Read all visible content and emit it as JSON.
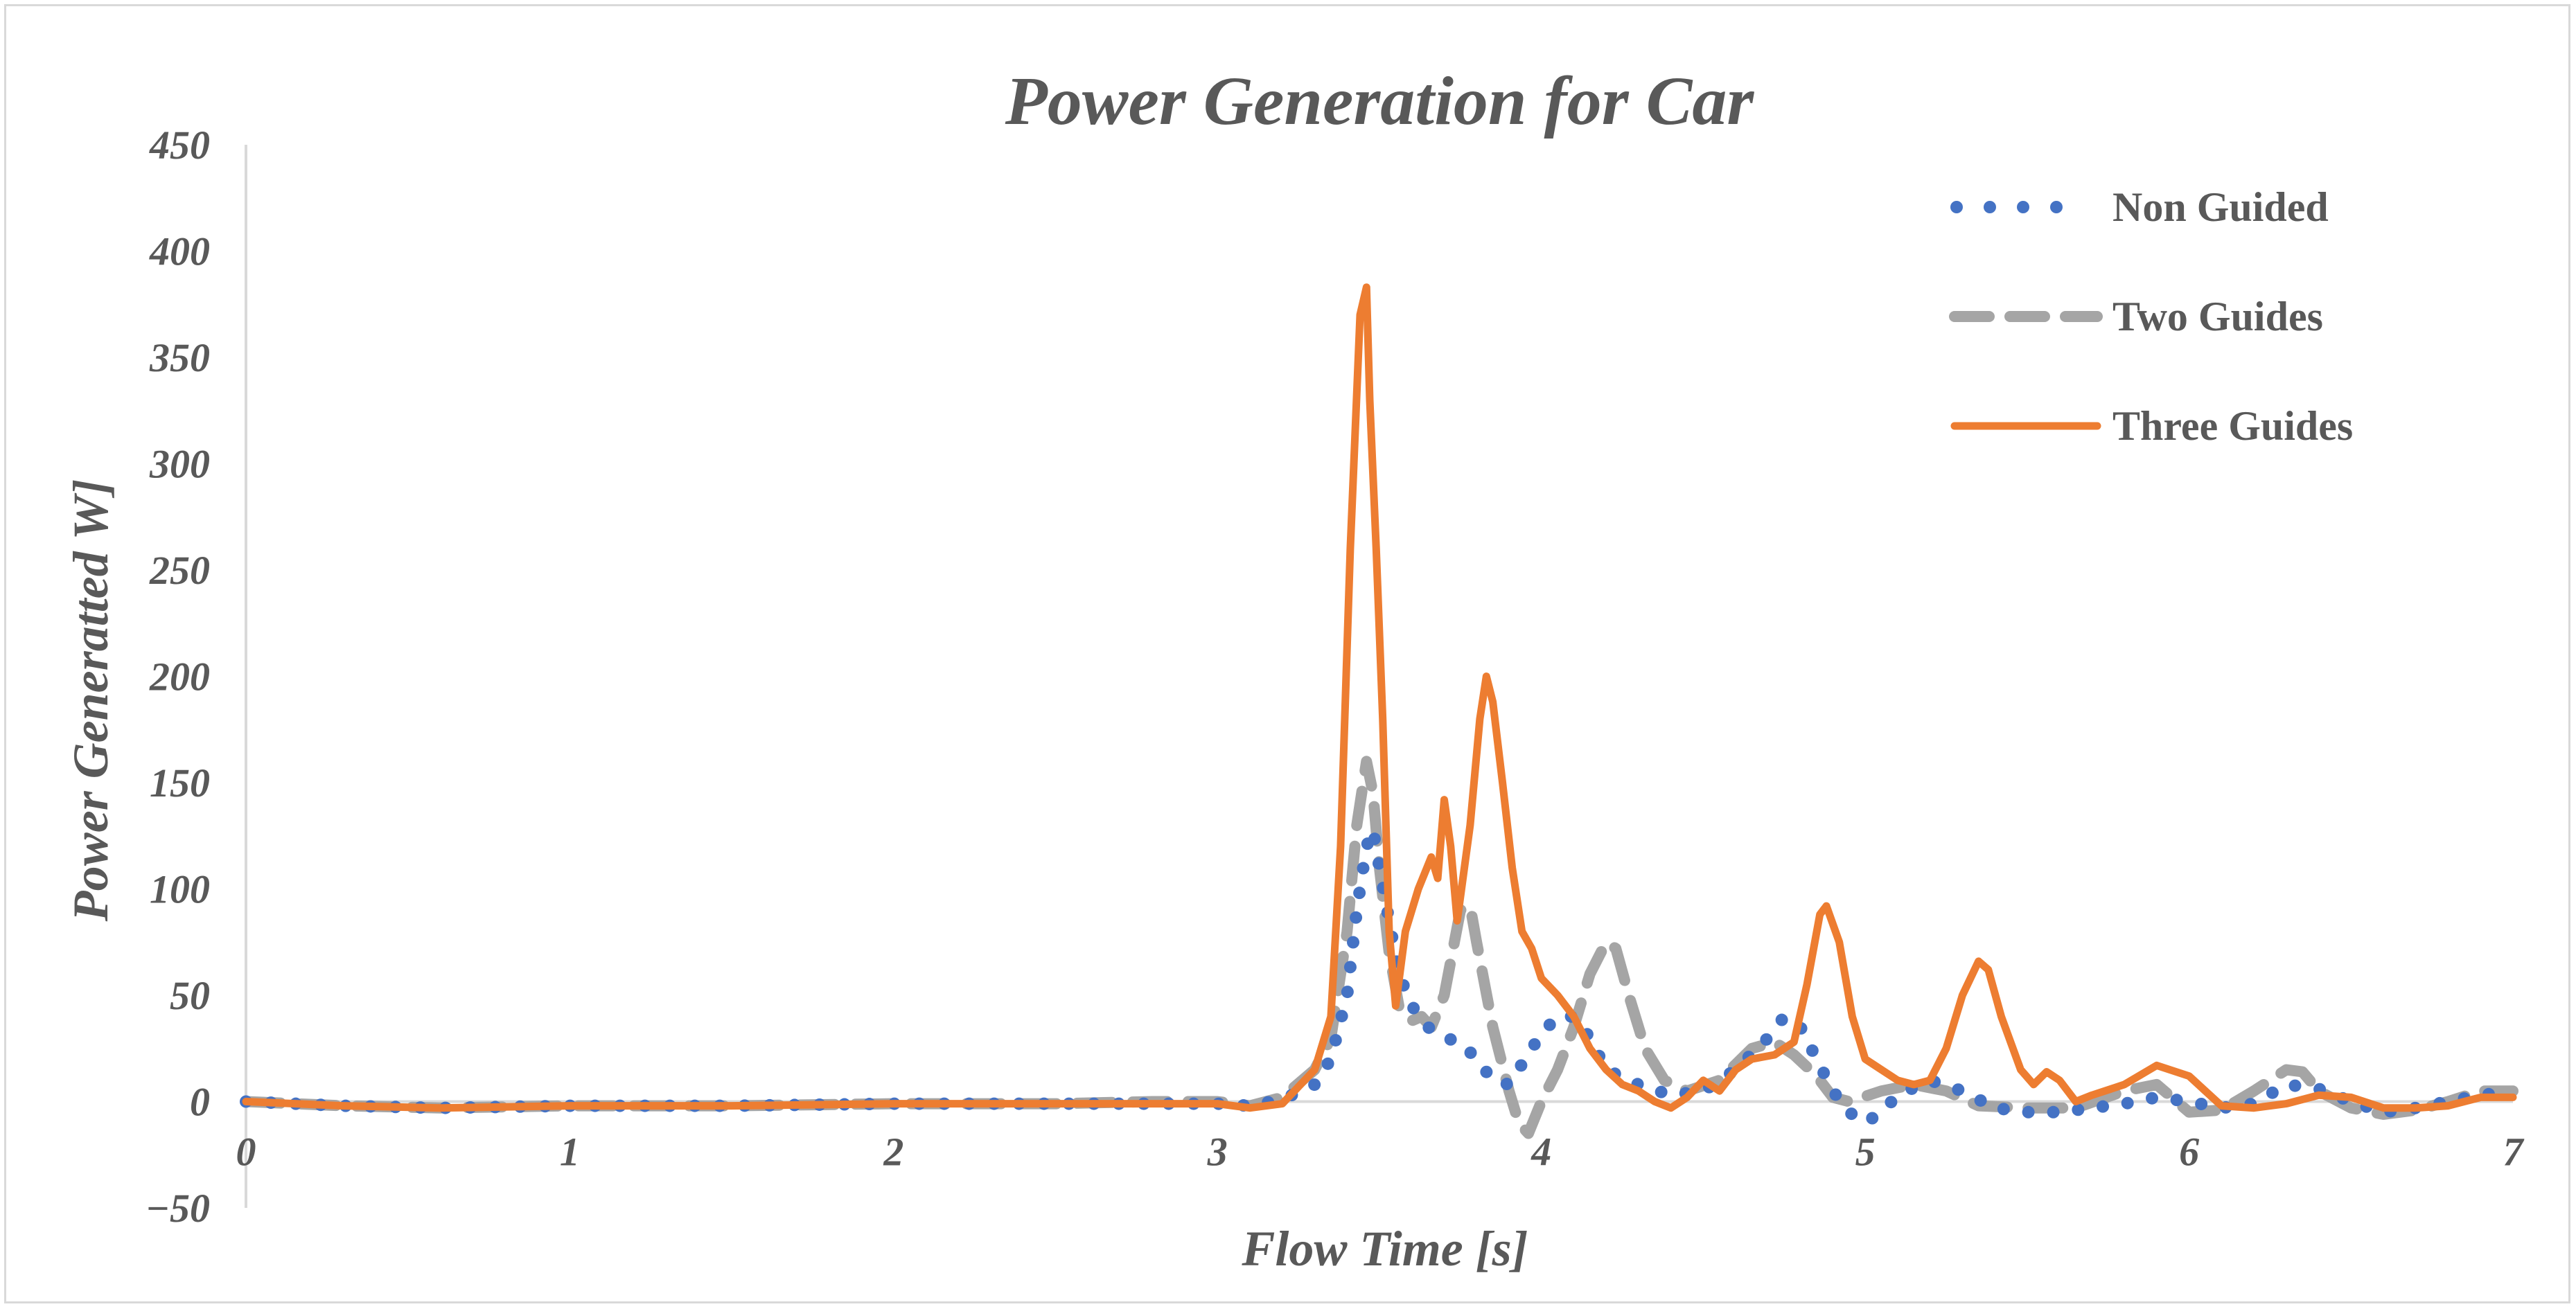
{
  "chart_data": {
    "type": "line",
    "title": "Power Generation for Car",
    "xlabel": "Flow Time [s]",
    "ylabel": "Power Generatted W]",
    "xlim": [
      0,
      7
    ],
    "ylim": [
      -50,
      450
    ],
    "x_ticks": [
      "0",
      "1",
      "2",
      "3",
      "4",
      "5",
      "6",
      "7"
    ],
    "y_ticks": [
      "−50",
      "0",
      "50",
      "100",
      "150",
      "200",
      "250",
      "300",
      "350",
      "400",
      "450"
    ],
    "x_tick_values": [
      0,
      1,
      2,
      3,
      4,
      5,
      6,
      7
    ],
    "y_tick_values": [
      -50,
      0,
      50,
      100,
      150,
      200,
      250,
      300,
      350,
      400,
      450
    ],
    "grid": false,
    "legend_position": "top-right",
    "series": [
      {
        "name": "Non Guided",
        "color": "#4472c4",
        "style": "dotted",
        "points": [
          [
            0,
            0
          ],
          [
            0.3,
            -2
          ],
          [
            0.6,
            -3
          ],
          [
            1.0,
            -2
          ],
          [
            1.5,
            -2
          ],
          [
            2.0,
            -1
          ],
          [
            2.5,
            -1
          ],
          [
            3.0,
            -1
          ],
          [
            3.1,
            -2
          ],
          [
            3.2,
            1
          ],
          [
            3.3,
            8
          ],
          [
            3.35,
            20
          ],
          [
            3.4,
            50
          ],
          [
            3.43,
            90
          ],
          [
            3.46,
            120
          ],
          [
            3.48,
            128
          ],
          [
            3.5,
            110
          ],
          [
            3.53,
            85
          ],
          [
            3.56,
            60
          ],
          [
            3.6,
            45
          ],
          [
            3.65,
            35
          ],
          [
            3.7,
            30
          ],
          [
            3.75,
            28
          ],
          [
            3.8,
            20
          ],
          [
            3.85,
            10
          ],
          [
            3.9,
            8
          ],
          [
            3.95,
            20
          ],
          [
            4.0,
            32
          ],
          [
            4.05,
            40
          ],
          [
            4.1,
            40
          ],
          [
            4.15,
            30
          ],
          [
            4.2,
            15
          ],
          [
            4.3,
            8
          ],
          [
            4.4,
            3
          ],
          [
            4.5,
            5
          ],
          [
            4.6,
            15
          ],
          [
            4.7,
            30
          ],
          [
            4.75,
            40
          ],
          [
            4.8,
            35
          ],
          [
            4.85,
            20
          ],
          [
            4.9,
            5
          ],
          [
            4.95,
            -5
          ],
          [
            5.0,
            -10
          ],
          [
            5.05,
            -5
          ],
          [
            5.1,
            3
          ],
          [
            5.2,
            10
          ],
          [
            5.3,
            5
          ],
          [
            5.4,
            -3
          ],
          [
            5.5,
            -5
          ],
          [
            5.6,
            -5
          ],
          [
            5.7,
            -3
          ],
          [
            5.8,
            -1
          ],
          [
            5.9,
            2
          ],
          [
            6.0,
            0
          ],
          [
            6.1,
            -3
          ],
          [
            6.2,
            -1
          ],
          [
            6.3,
            8
          ],
          [
            6.4,
            6
          ],
          [
            6.5,
            0
          ],
          [
            6.6,
            -5
          ],
          [
            6.7,
            -3
          ],
          [
            6.8,
            0
          ],
          [
            6.9,
            3
          ],
          [
            7.0,
            5
          ]
        ]
      },
      {
        "name": "Two Guides",
        "color": "#a5a5a5",
        "style": "dashed",
        "points": [
          [
            0,
            0
          ],
          [
            0.3,
            -2
          ],
          [
            0.6,
            -3
          ],
          [
            1.0,
            -2
          ],
          [
            1.5,
            -2
          ],
          [
            2.0,
            -1
          ],
          [
            2.5,
            -1
          ],
          [
            2.8,
            0
          ],
          [
            3.0,
            0
          ],
          [
            3.1,
            -2
          ],
          [
            3.2,
            2
          ],
          [
            3.3,
            15
          ],
          [
            3.35,
            30
          ],
          [
            3.4,
            80
          ],
          [
            3.43,
            130
          ],
          [
            3.46,
            160
          ],
          [
            3.48,
            145
          ],
          [
            3.5,
            110
          ],
          [
            3.53,
            70
          ],
          [
            3.56,
            45
          ],
          [
            3.6,
            38
          ],
          [
            3.63,
            40
          ],
          [
            3.66,
            35
          ],
          [
            3.7,
            50
          ],
          [
            3.75,
            90
          ],
          [
            3.78,
            92
          ],
          [
            3.8,
            75
          ],
          [
            3.85,
            35
          ],
          [
            3.9,
            5
          ],
          [
            3.93,
            -10
          ],
          [
            3.96,
            -15
          ],
          [
            4.0,
            0
          ],
          [
            4.05,
            15
          ],
          [
            4.1,
            35
          ],
          [
            4.15,
            60
          ],
          [
            4.2,
            75
          ],
          [
            4.23,
            72
          ],
          [
            4.27,
            50
          ],
          [
            4.32,
            25
          ],
          [
            4.38,
            10
          ],
          [
            4.45,
            5
          ],
          [
            4.55,
            10
          ],
          [
            4.65,
            25
          ],
          [
            4.72,
            28
          ],
          [
            4.78,
            22
          ],
          [
            4.85,
            12
          ],
          [
            4.9,
            2
          ],
          [
            4.95,
            0
          ],
          [
            5.05,
            5
          ],
          [
            5.15,
            8
          ],
          [
            5.25,
            5
          ],
          [
            5.35,
            -2
          ],
          [
            5.5,
            -3
          ],
          [
            5.65,
            -3
          ],
          [
            5.8,
            5
          ],
          [
            5.9,
            8
          ],
          [
            6.0,
            -5
          ],
          [
            6.1,
            -4
          ],
          [
            6.2,
            5
          ],
          [
            6.3,
            15
          ],
          [
            6.35,
            14
          ],
          [
            6.4,
            5
          ],
          [
            6.5,
            -3
          ],
          [
            6.6,
            -6
          ],
          [
            6.7,
            -4
          ],
          [
            6.8,
            0
          ],
          [
            6.9,
            5
          ],
          [
            7.0,
            5
          ]
        ]
      },
      {
        "name": "Three Guides",
        "color": "#ed7d31",
        "style": "solid",
        "points": [
          [
            0,
            0
          ],
          [
            0.3,
            -2
          ],
          [
            0.6,
            -3
          ],
          [
            1.0,
            -2
          ],
          [
            1.5,
            -2
          ],
          [
            2.0,
            -1
          ],
          [
            2.5,
            -1
          ],
          [
            3.0,
            -1
          ],
          [
            3.1,
            -3
          ],
          [
            3.2,
            -1
          ],
          [
            3.3,
            15
          ],
          [
            3.35,
            40
          ],
          [
            3.38,
            120
          ],
          [
            3.41,
            260
          ],
          [
            3.44,
            370
          ],
          [
            3.46,
            383
          ],
          [
            3.47,
            330
          ],
          [
            3.49,
            260
          ],
          [
            3.51,
            180
          ],
          [
            3.53,
            80
          ],
          [
            3.55,
            45
          ],
          [
            3.58,
            80
          ],
          [
            3.62,
            100
          ],
          [
            3.66,
            115
          ],
          [
            3.68,
            105
          ],
          [
            3.7,
            142
          ],
          [
            3.72,
            120
          ],
          [
            3.74,
            85
          ],
          [
            3.78,
            130
          ],
          [
            3.81,
            180
          ],
          [
            3.83,
            200
          ],
          [
            3.85,
            188
          ],
          [
            3.88,
            150
          ],
          [
            3.91,
            110
          ],
          [
            3.94,
            80
          ],
          [
            3.97,
            72
          ],
          [
            4.0,
            58
          ],
          [
            4.05,
            50
          ],
          [
            4.1,
            40
          ],
          [
            4.15,
            25
          ],
          [
            4.2,
            15
          ],
          [
            4.25,
            8
          ],
          [
            4.3,
            5
          ],
          [
            4.35,
            0
          ],
          [
            4.4,
            -3
          ],
          [
            4.45,
            2
          ],
          [
            4.5,
            10
          ],
          [
            4.55,
            5
          ],
          [
            4.6,
            15
          ],
          [
            4.65,
            20
          ],
          [
            4.72,
            22
          ],
          [
            4.78,
            28
          ],
          [
            4.82,
            55
          ],
          [
            4.86,
            88
          ],
          [
            4.88,
            92
          ],
          [
            4.92,
            75
          ],
          [
            4.96,
            40
          ],
          [
            5.0,
            20
          ],
          [
            5.05,
            15
          ],
          [
            5.1,
            10
          ],
          [
            5.15,
            8
          ],
          [
            5.2,
            10
          ],
          [
            5.25,
            25
          ],
          [
            5.3,
            50
          ],
          [
            5.35,
            66
          ],
          [
            5.38,
            62
          ],
          [
            5.42,
            40
          ],
          [
            5.48,
            15
          ],
          [
            5.52,
            8
          ],
          [
            5.56,
            14
          ],
          [
            5.6,
            10
          ],
          [
            5.65,
            0
          ],
          [
            5.7,
            3
          ],
          [
            5.8,
            8
          ],
          [
            5.9,
            17
          ],
          [
            6.0,
            12
          ],
          [
            6.1,
            -2
          ],
          [
            6.2,
            -3
          ],
          [
            6.3,
            -1
          ],
          [
            6.4,
            3
          ],
          [
            6.5,
            2
          ],
          [
            6.6,
            -3
          ],
          [
            6.7,
            -3
          ],
          [
            6.8,
            -2
          ],
          [
            6.9,
            2
          ],
          [
            7.0,
            2
          ]
        ]
      }
    ]
  }
}
